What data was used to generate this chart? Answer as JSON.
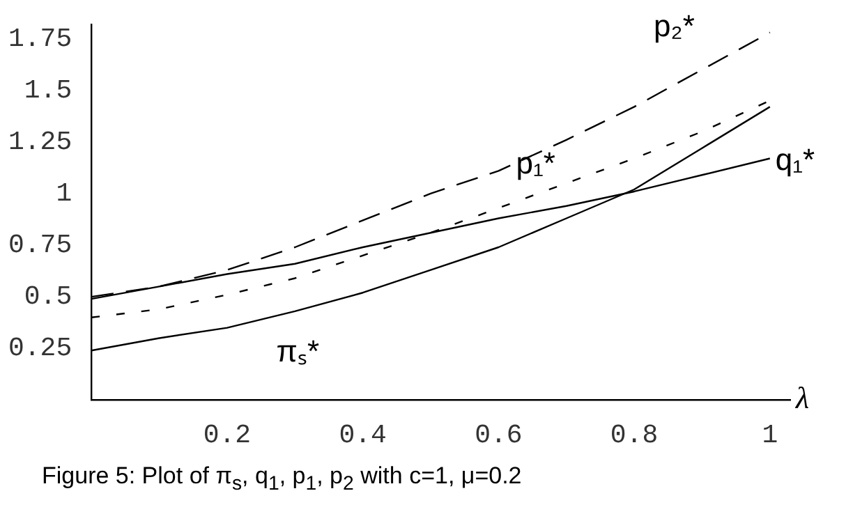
{
  "chart_data": {
    "type": "line",
    "xlabel": "λ",
    "x": [
      0,
      0.1,
      0.2,
      0.3,
      0.4,
      0.5,
      0.6,
      0.7,
      0.8,
      0.9,
      1
    ],
    "xlim": [
      0,
      1.03
    ],
    "xticks": [
      0.2,
      0.4,
      0.6,
      0.8,
      1
    ],
    "ylim": [
      0,
      1.82
    ],
    "yticks": [
      0.25,
      0.5,
      0.75,
      1,
      1.25,
      1.5,
      1.75
    ],
    "grid": false,
    "legend": false,
    "marker": "none",
    "series": [
      {
        "name": "p₂*",
        "color": "#000000",
        "line_style": "dashed",
        "values": [
          0.5,
          0.55,
          0.63,
          0.74,
          0.87,
          1.0,
          1.11,
          1.26,
          1.42,
          1.6,
          1.78
        ]
      },
      {
        "name": "p₁*",
        "color": "#000000",
        "line_style": "dotted",
        "values": [
          0.4,
          0.44,
          0.51,
          0.59,
          0.7,
          0.81,
          0.93,
          1.05,
          1.17,
          1.3,
          1.45
        ]
      },
      {
        "name": "q₁*",
        "color": "#000000",
        "line_style": "solid",
        "values": [
          0.49,
          0.55,
          0.61,
          0.66,
          0.74,
          0.81,
          0.88,
          0.94,
          1.01,
          1.09,
          1.17
        ]
      },
      {
        "name": "πₛ*",
        "color": "#000000",
        "line_style": "solid",
        "values": [
          0.24,
          0.3,
          0.35,
          0.43,
          0.52,
          0.63,
          0.74,
          0.88,
          1.02,
          1.22,
          1.42
        ]
      }
    ],
    "annotations": [
      "Figure 5: Plot of π$_{s}$, q$_{1}$, p$_{1}$, p$_{2}$ with c=1, μ=0.2"
    ]
  }
}
